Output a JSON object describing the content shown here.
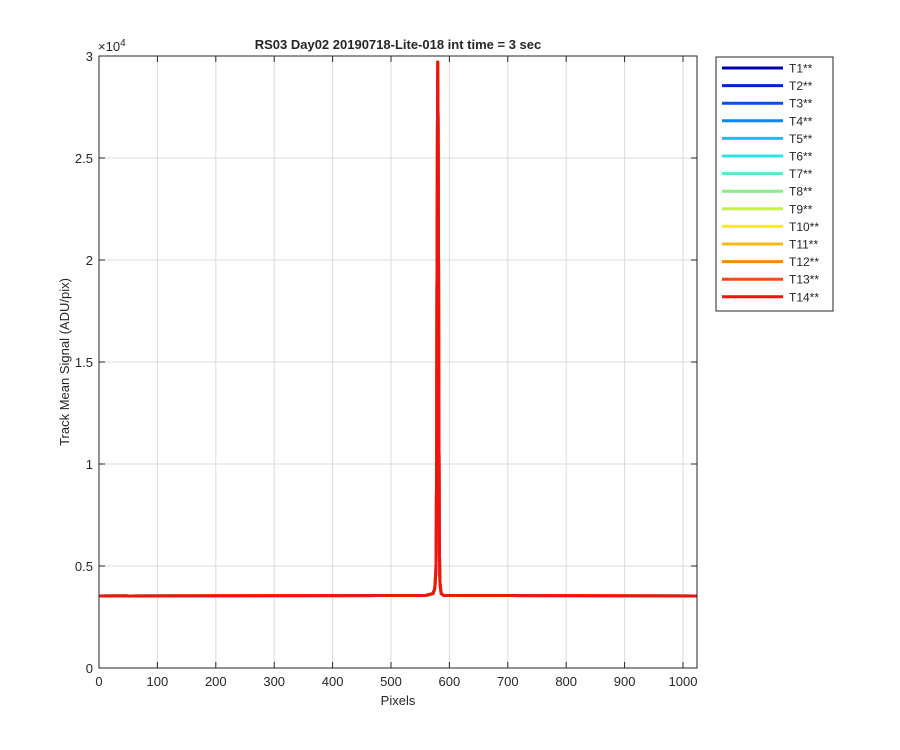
{
  "chart_data": {
    "type": "line",
    "title": "RS03 Day02 20190718-Lite-018 int time = 3 sec",
    "xlabel": "Pixels",
    "ylabel": "Track Mean Signal (ADU/pix)",
    "y_exponent_label": "×10",
    "y_exponent_power": "4",
    "xlim": [
      0,
      1024
    ],
    "ylim": [
      0,
      30000
    ],
    "x_ticks": [
      0,
      100,
      200,
      300,
      400,
      500,
      600,
      700,
      800,
      900,
      1000
    ],
    "x_tick_labels": [
      "0",
      "100",
      "200",
      "300",
      "400",
      "500",
      "600",
      "700",
      "800",
      "900",
      "1000"
    ],
    "y_ticks": [
      0,
      5000,
      10000,
      15000,
      20000,
      25000,
      30000
    ],
    "y_tick_labels": [
      "0",
      "0.5",
      "1",
      "1.5",
      "2",
      "2.5",
      "3"
    ],
    "grid": true,
    "legend_position": "outside-top-right",
    "series": [
      {
        "name": "T1**",
        "color": "#0000a8"
      },
      {
        "name": "T2**",
        "color": "#0021db"
      },
      {
        "name": "T3**",
        "color": "#0050f0"
      },
      {
        "name": "T4**",
        "color": "#0a86f0"
      },
      {
        "name": "T5**",
        "color": "#18c0f0"
      },
      {
        "name": "T6**",
        "color": "#2ae6e6"
      },
      {
        "name": "T7**",
        "color": "#5ae8c8"
      },
      {
        "name": "T8**",
        "color": "#86ee8a"
      },
      {
        "name": "T9**",
        "color": "#c4f04a"
      },
      {
        "name": "T10**",
        "color": "#f8ee10"
      },
      {
        "name": "T11**",
        "color": "#f8b812"
      },
      {
        "name": "T12**",
        "color": "#f88a0c"
      },
      {
        "name": "T13**",
        "color": "#f84a06"
      },
      {
        "name": "T14**",
        "color": "#f01410"
      }
    ],
    "profile": {
      "x": [
        0,
        560,
        572,
        575,
        577,
        578,
        579,
        580,
        581,
        582,
        583,
        584,
        586,
        590,
        1024
      ],
      "y": [
        3530,
        3560,
        3650,
        3900,
        4800,
        9000,
        22000,
        29700,
        25000,
        12000,
        5500,
        4100,
        3650,
        3560,
        3530
      ]
    }
  }
}
